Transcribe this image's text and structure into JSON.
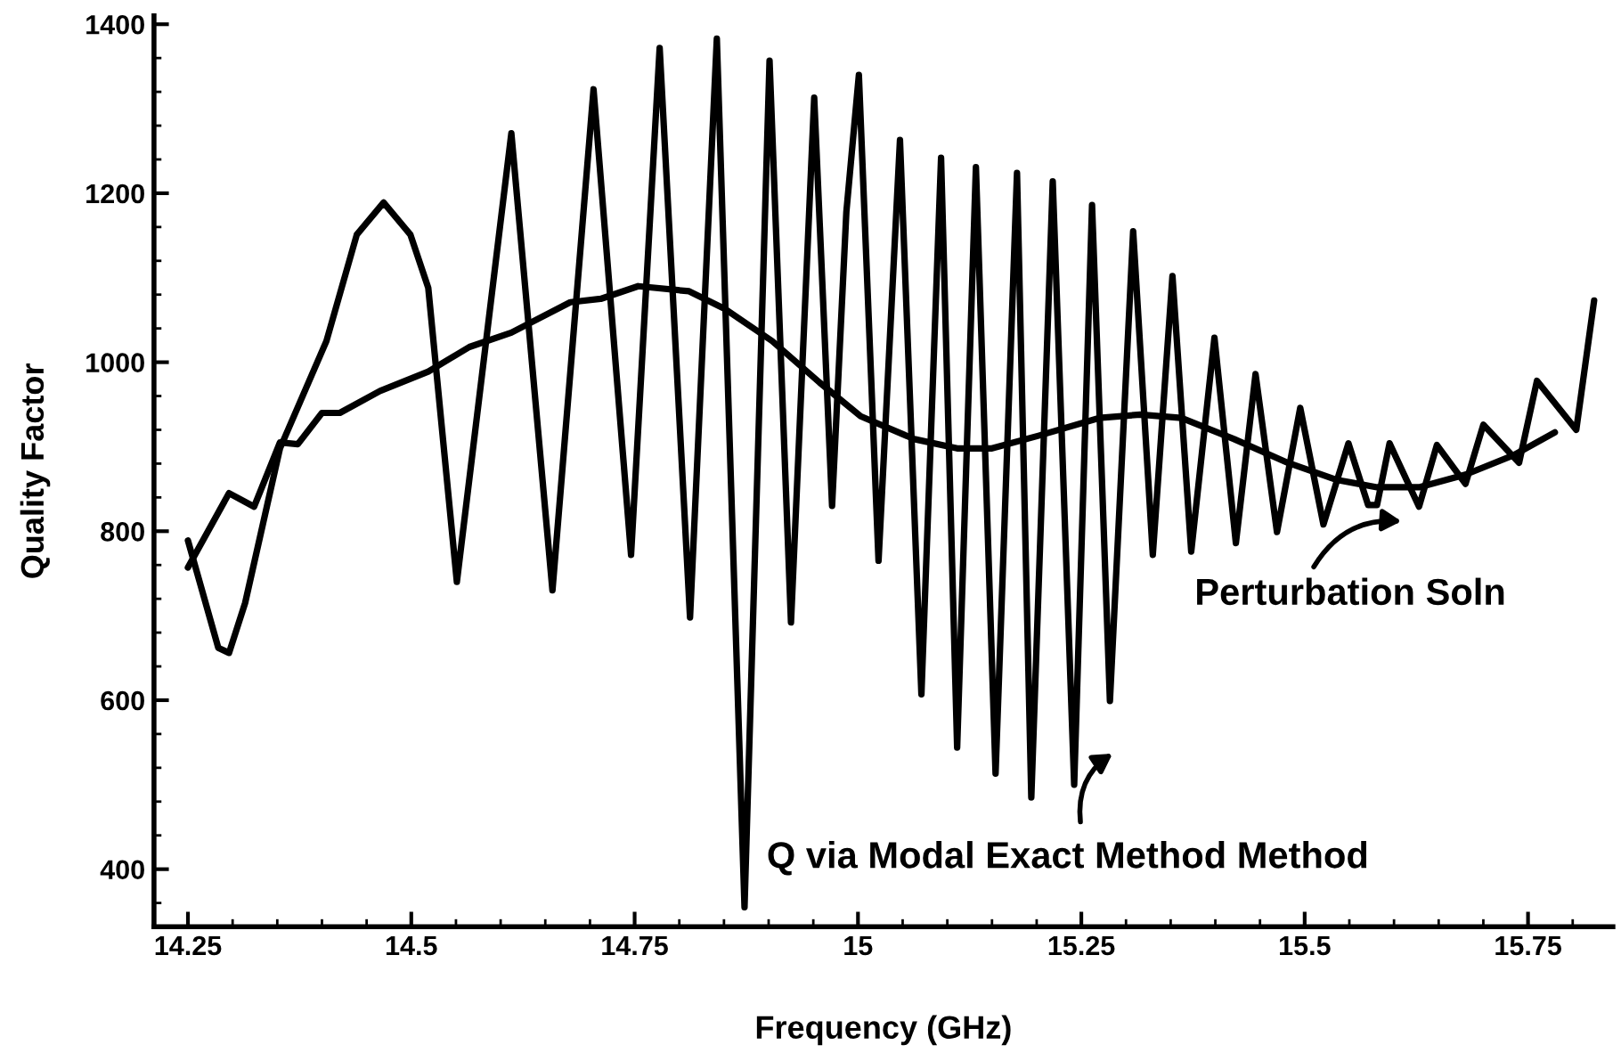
{
  "chart_data": {
    "type": "line",
    "xlabel": "Frequency (GHz)",
    "ylabel": "Quality Factor",
    "xlim": [
      14.212,
      15.845
    ],
    "xticks": [
      14.25,
      14.5,
      14.75,
      15,
      15.25,
      15.5,
      15.75
    ],
    "ylim": [
      332,
      1410
    ],
    "yticks": [
      400,
      600,
      800,
      1000,
      1200,
      1400
    ],
    "grid": false,
    "legend": false,
    "marker": "none",
    "line_style": "solid",
    "series": [
      {
        "color": "#000000",
        "x": [
          14.25,
          14.284,
          14.296,
          14.314,
          14.353,
          14.405,
          14.439,
          14.469,
          14.499,
          14.519,
          14.551,
          14.612,
          14.658,
          14.704,
          14.746,
          14.778,
          14.812,
          14.842,
          14.873,
          14.901,
          14.925,
          14.951,
          14.971,
          14.987,
          15.001,
          15.023,
          15.047,
          15.071,
          15.093,
          15.111,
          15.132,
          15.154,
          15.178,
          15.194,
          15.218,
          15.242,
          15.262,
          15.282,
          15.308,
          15.33,
          15.352,
          15.373,
          15.399,
          15.423,
          15.445,
          15.469,
          15.495,
          15.521,
          15.549,
          15.571,
          15.581,
          15.595,
          15.628,
          15.648,
          15.68,
          15.7,
          15.74,
          15.76,
          15.804,
          15.824
        ],
        "values": [
          789,
          662,
          656,
          715,
          898,
          1025,
          1151,
          1189,
          1151,
          1088,
          740,
          1271,
          730,
          1323,
          772,
          1372,
          698,
          1383,
          355,
          1357,
          692,
          1313,
          830,
          1178,
          1340,
          765,
          1263,
          607,
          1242,
          544,
          1231,
          513,
          1224,
          485,
          1214,
          500,
          1186,
          599,
          1155,
          772,
          1102,
          776,
          1029,
          786,
          986,
          799,
          946,
          808,
          904,
          831,
          831,
          904,
          829,
          902,
          856,
          926,
          881,
          978,
          920,
          1073
        ]
      },
      {
        "color": "#000000",
        "x": [
          14.25,
          14.296,
          14.324,
          14.353,
          14.373,
          14.4,
          14.42,
          14.465,
          14.519,
          14.565,
          14.612,
          14.678,
          14.712,
          14.754,
          14.811,
          14.851,
          14.904,
          14.957,
          15.003,
          15.063,
          15.111,
          15.15,
          15.202,
          15.27,
          15.316,
          15.362,
          15.421,
          15.481,
          15.535,
          15.581,
          15.628,
          15.68,
          15.734,
          15.78
        ],
        "values": [
          757,
          845,
          829,
          905,
          903,
          940,
          940,
          966,
          989,
          1018,
          1035,
          1071,
          1075,
          1090,
          1084,
          1063,
          1025,
          976,
          936,
          909,
          898,
          898,
          913,
          934,
          938,
          934,
          909,
          881,
          861,
          852,
          852,
          867,
          890,
          917
        ]
      }
    ],
    "annotations": [
      "Q via Modal Exact Method Method",
      "Perturbation Soln"
    ]
  }
}
